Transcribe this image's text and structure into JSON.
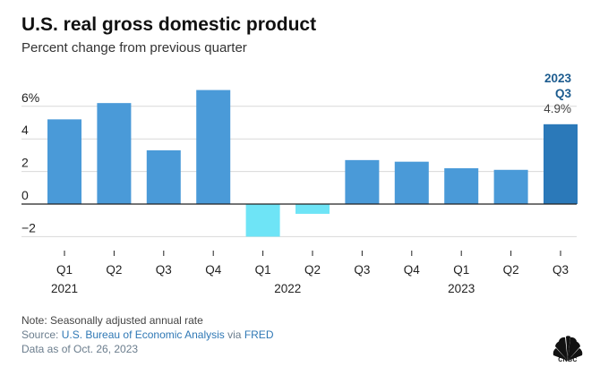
{
  "header": {
    "title": "U.S. real gross domestic product",
    "subtitle": "Percent change from previous quarter"
  },
  "chart_data": {
    "type": "bar",
    "categories": [
      "Q1",
      "Q2",
      "Q3",
      "Q4",
      "Q1",
      "Q2",
      "Q3",
      "Q4",
      "Q1",
      "Q2",
      "Q3"
    ],
    "years": [
      {
        "label": "2021",
        "start": 0,
        "end": 3
      },
      {
        "label": "2022",
        "start": 4,
        "end": 7
      },
      {
        "label": "2023",
        "start": 8,
        "end": 10
      }
    ],
    "series": [
      {
        "values": [
          5.2,
          6.2,
          3.3,
          7.0,
          -2.0,
          -0.6,
          2.7,
          2.6,
          2.2,
          2.1,
          4.9
        ]
      }
    ],
    "colors": {
      "positive": "#4a9ad8",
      "negative": "#6ee4f6",
      "highlight": "#2b79b9",
      "grid": "#d9d9d9",
      "zero": "#222222"
    },
    "highlight_index": 10,
    "yticks": [
      {
        "value": 6,
        "label": "6%"
      },
      {
        "value": 4,
        "label": "4"
      },
      {
        "value": 2,
        "label": "2"
      },
      {
        "value": 0,
        "label": "0"
      },
      {
        "value": -2,
        "label": "−2"
      }
    ],
    "ylim": [
      -2.6,
      7.2
    ],
    "annotation": {
      "line1": "2023",
      "line2": "Q3",
      "value": "4.9%"
    }
  },
  "footer": {
    "note": "Note: Seasonally adjusted annual rate",
    "source_prefix": "Source: ",
    "source_link1": "U.S. Bureau of Economic Analysis",
    "source_mid": " via ",
    "source_link2": "FRED",
    "data_as_of": "Data as of Oct. 26, 2023",
    "logo_text": "CNBC",
    "logo_icon": "peacock-icon"
  }
}
